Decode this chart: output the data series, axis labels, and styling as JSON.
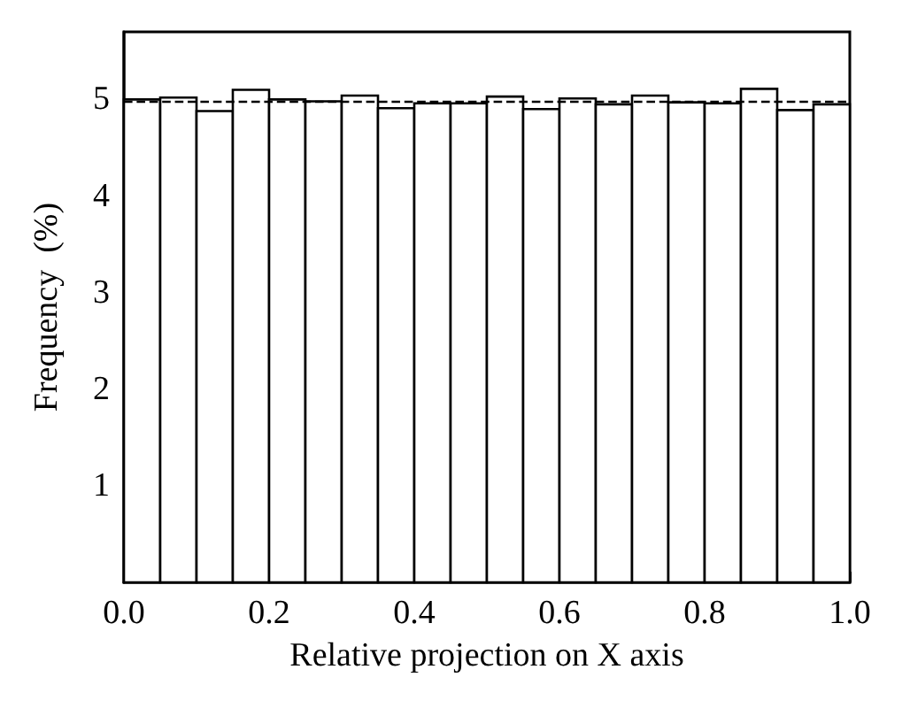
{
  "chart_data": {
    "type": "histogram",
    "xlabel": "Relative projection on X axis",
    "ylabel": "Frequency  (%)",
    "bins": [
      0,
      0.05,
      0.1,
      0.15,
      0.2,
      0.25,
      0.3,
      0.35,
      0.4,
      0.45,
      0.5,
      0.55,
      0.6,
      0.65,
      0.7,
      0.75,
      0.8,
      0.85,
      0.9,
      0.95,
      1.0
    ],
    "values": [
      5.0,
      5.02,
      4.88,
      5.1,
      5.0,
      4.98,
      5.04,
      4.91,
      4.96,
      4.96,
      5.03,
      4.9,
      5.01,
      4.95,
      5.04,
      4.97,
      4.96,
      5.11,
      4.89,
      4.95
    ],
    "color": "#ffffff",
    "xlim": [
      0,
      1
    ],
    "ylim": [
      0,
      5.7
    ],
    "xticks": [
      {
        "value": 0,
        "label": "0.0"
      },
      {
        "value": 0.1,
        "label": null
      },
      {
        "value": 0.2,
        "label": "0.2"
      },
      {
        "value": 0.3,
        "label": null
      },
      {
        "value": 0.4,
        "label": "0.4"
      },
      {
        "value": 0.5,
        "label": null
      },
      {
        "value": 0.6,
        "label": "0.6"
      },
      {
        "value": 0.7,
        "label": null
      },
      {
        "value": 0.8,
        "label": "0.8"
      },
      {
        "value": 0.9,
        "label": null
      },
      {
        "value": 1.0,
        "label": "1.0"
      }
    ],
    "yticks": [
      1,
      2,
      3,
      4,
      5
    ],
    "ref_lines": [
      {
        "axis": "y",
        "value": 4.98,
        "line_style": "dashed"
      }
    ],
    "grid": false
  }
}
